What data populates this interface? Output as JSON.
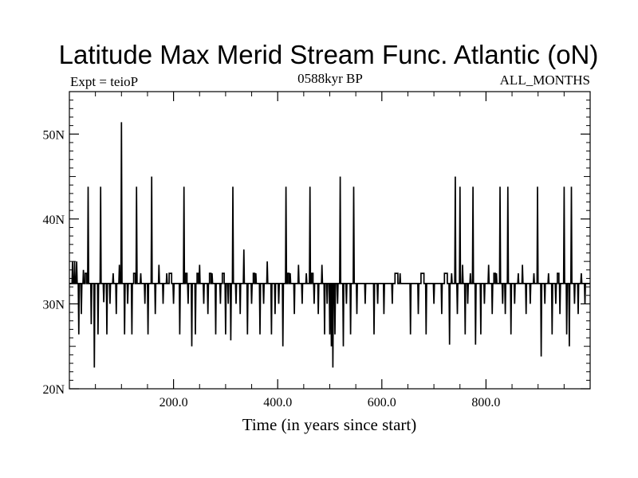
{
  "chart_data": {
    "type": "line",
    "title": "Latitude Max Merid Stream Func. Atlantic (oN)",
    "subtitle_left": "Expt = teioP",
    "subtitle_center": "0588kyr BP",
    "subtitle_right": "ALL_MONTHS",
    "xlabel": "Time (in years since start)",
    "ylabel": "",
    "xlim": [
      0,
      1000
    ],
    "ylim": [
      20,
      55
    ],
    "x_ticks": [
      200,
      400,
      600,
      800
    ],
    "x_tick_labels": [
      "200.0",
      "400.0",
      "600.0",
      "800.0"
    ],
    "y_ticks": [
      20,
      30,
      40,
      50
    ],
    "y_tick_labels": [
      "20N",
      "30N",
      "40N",
      "50N"
    ],
    "grid": false,
    "legend": "none",
    "line_color": "#000000",
    "series": [
      {
        "baseline": 32.4,
        "level_high": 33.6,
        "spikes": [
          [
            6,
            35
          ],
          [
            10,
            35
          ],
          [
            14,
            35
          ],
          [
            18,
            26.4
          ],
          [
            23,
            28.8
          ],
          [
            27,
            34
          ],
          [
            36,
            43.8
          ],
          [
            42,
            27.6
          ],
          [
            48,
            22.5
          ],
          [
            55,
            26.4
          ],
          [
            60,
            43.8
          ],
          [
            66,
            30.2
          ],
          [
            72,
            26.4
          ],
          [
            78,
            30
          ],
          [
            84,
            33.6
          ],
          [
            90,
            28.8
          ],
          [
            96,
            34.6
          ],
          [
            100,
            51.4
          ],
          [
            106,
            26.4
          ],
          [
            112,
            30
          ],
          [
            120,
            26.4
          ],
          [
            129,
            43.8
          ],
          [
            137,
            33.6
          ],
          [
            145,
            30
          ],
          [
            151,
            26.4
          ],
          [
            158,
            45
          ],
          [
            165,
            28.8
          ],
          [
            172,
            34.6
          ],
          [
            180,
            30
          ],
          [
            187,
            33.6
          ],
          [
            200,
            30
          ],
          [
            212,
            26.4
          ],
          [
            220,
            43.8
          ],
          [
            228,
            30
          ],
          [
            235,
            25
          ],
          [
            242,
            26.4
          ],
          [
            250,
            34.6
          ],
          [
            258,
            30
          ],
          [
            266,
            28.8
          ],
          [
            274,
            33.6
          ],
          [
            281,
            26.4
          ],
          [
            290,
            30
          ],
          [
            300,
            26.4
          ],
          [
            305,
            30
          ],
          [
            310,
            25.7
          ],
          [
            314,
            43.8
          ],
          [
            320,
            30
          ],
          [
            328,
            28.8
          ],
          [
            335,
            36.4
          ],
          [
            342,
            26.4
          ],
          [
            350,
            30
          ],
          [
            358,
            33.6
          ],
          [
            366,
            26.4
          ],
          [
            373,
            30
          ],
          [
            380,
            35
          ],
          [
            388,
            26.4
          ],
          [
            395,
            28.8
          ],
          [
            402,
            30
          ],
          [
            410,
            25
          ],
          [
            416,
            43.8
          ],
          [
            424,
            33.6
          ],
          [
            432,
            28.8
          ],
          [
            440,
            34.6
          ],
          [
            447,
            30
          ],
          [
            455,
            33.6
          ],
          [
            462,
            43.8
          ],
          [
            470,
            30
          ],
          [
            478,
            28.8
          ],
          [
            485,
            34.6
          ],
          [
            490,
            26.4
          ],
          [
            495,
            30
          ],
          [
            500,
            26.4
          ],
          [
            503,
            25
          ],
          [
            506,
            22.5
          ],
          [
            510,
            26.4
          ],
          [
            515,
            30
          ],
          [
            520,
            45
          ],
          [
            526,
            25
          ],
          [
            532,
            30
          ],
          [
            540,
            26.4
          ],
          [
            546,
            43.8
          ],
          [
            552,
            28.8
          ],
          [
            568,
            30
          ],
          [
            585,
            26.4
          ],
          [
            592,
            30
          ],
          [
            604,
            28.8
          ],
          [
            620,
            30
          ],
          [
            635,
            33.6
          ],
          [
            655,
            26.4
          ],
          [
            670,
            28.8
          ],
          [
            685,
            26.4
          ],
          [
            700,
            30
          ],
          [
            715,
            28.8
          ],
          [
            730,
            25.2
          ],
          [
            734,
            33.6
          ],
          [
            741,
            45
          ],
          [
            745,
            28.8
          ],
          [
            750,
            43.8
          ],
          [
            755,
            34.6
          ],
          [
            760,
            26.4
          ],
          [
            765,
            30
          ],
          [
            770,
            33.6
          ],
          [
            775,
            43.8
          ],
          [
            780,
            25.2
          ],
          [
            790,
            26.4
          ],
          [
            797,
            30
          ],
          [
            805,
            34.6
          ],
          [
            812,
            28.8
          ],
          [
            820,
            33.6
          ],
          [
            827,
            43.8
          ],
          [
            832,
            30
          ],
          [
            837,
            28.8
          ],
          [
            842,
            43.8
          ],
          [
            848,
            26.4
          ],
          [
            855,
            30
          ],
          [
            862,
            33.6
          ],
          [
            870,
            34.6
          ],
          [
            877,
            28.8
          ],
          [
            885,
            30
          ],
          [
            892,
            33.6
          ],
          [
            899,
            43.8
          ],
          [
            906,
            23.8
          ],
          [
            913,
            30
          ],
          [
            920,
            33.6
          ],
          [
            927,
            26.4
          ],
          [
            934,
            30
          ],
          [
            942,
            28.8
          ],
          [
            950,
            43.8
          ],
          [
            955,
            26.4
          ],
          [
            960,
            25
          ],
          [
            964,
            43.8
          ],
          [
            970,
            30
          ],
          [
            977,
            28.8
          ],
          [
            983,
            33.6
          ],
          [
            990,
            30
          ]
        ]
      }
    ]
  }
}
